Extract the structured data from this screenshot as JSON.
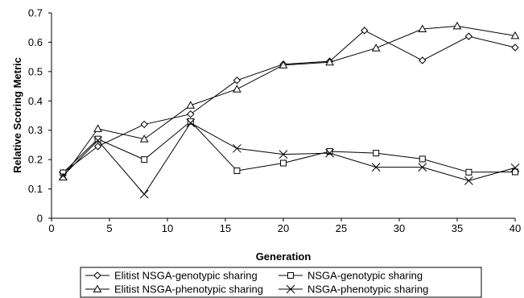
{
  "chart_data": {
    "type": "line",
    "xlabel": "Generation",
    "ylabel": "Relative Scoring Metric",
    "xlim": [
      0,
      40
    ],
    "ylim": [
      0,
      0.7
    ],
    "xticks": [
      0,
      5,
      10,
      15,
      20,
      25,
      30,
      35,
      40
    ],
    "yticks": [
      0,
      0.1,
      0.2,
      0.3,
      0.4,
      0.5,
      0.6,
      0.7
    ],
    "xtick_labels": [
      "0",
      "5",
      "10",
      "15",
      "20",
      "25",
      "30",
      "35",
      "40"
    ],
    "ytick_labels": [
      "0",
      "0.1",
      "0.2",
      "0.3",
      "0.4",
      "0.5",
      "0.6",
      "0.7"
    ],
    "grid": false,
    "legend_position": "bottom",
    "series": [
      {
        "name": "Elitist NSGA-genotypic sharing",
        "marker": "diamond",
        "x": [
          1,
          4,
          8,
          12,
          16,
          20,
          24,
          27,
          32,
          36,
          40
        ],
        "y": [
          0.155,
          0.245,
          0.32,
          0.355,
          0.47,
          0.525,
          0.535,
          0.64,
          0.538,
          0.62,
          0.582
        ]
      },
      {
        "name": "NSGA-genotypic sharing",
        "marker": "square",
        "x": [
          1,
          4,
          8,
          12,
          16,
          20,
          24,
          28,
          32,
          36,
          40
        ],
        "y": [
          0.155,
          0.27,
          0.2,
          0.33,
          0.162,
          0.188,
          0.228,
          0.222,
          0.202,
          0.157,
          0.158
        ]
      },
      {
        "name": "Elitist NSGA-phenotypic sharing",
        "marker": "triangle",
        "x": [
          1,
          4,
          8,
          12,
          16,
          20,
          24,
          28,
          32,
          35,
          40
        ],
        "y": [
          0.14,
          0.305,
          0.27,
          0.385,
          0.44,
          0.522,
          0.532,
          0.58,
          0.645,
          0.655,
          0.622
        ]
      },
      {
        "name": "NSGA-phenotypic sharing",
        "marker": "x",
        "x": [
          1,
          4,
          8,
          12,
          16,
          20,
          24,
          28,
          32,
          36,
          40
        ],
        "y": [
          0.145,
          0.265,
          0.082,
          0.325,
          0.238,
          0.218,
          0.222,
          0.174,
          0.174,
          0.128,
          0.172
        ]
      }
    ]
  }
}
